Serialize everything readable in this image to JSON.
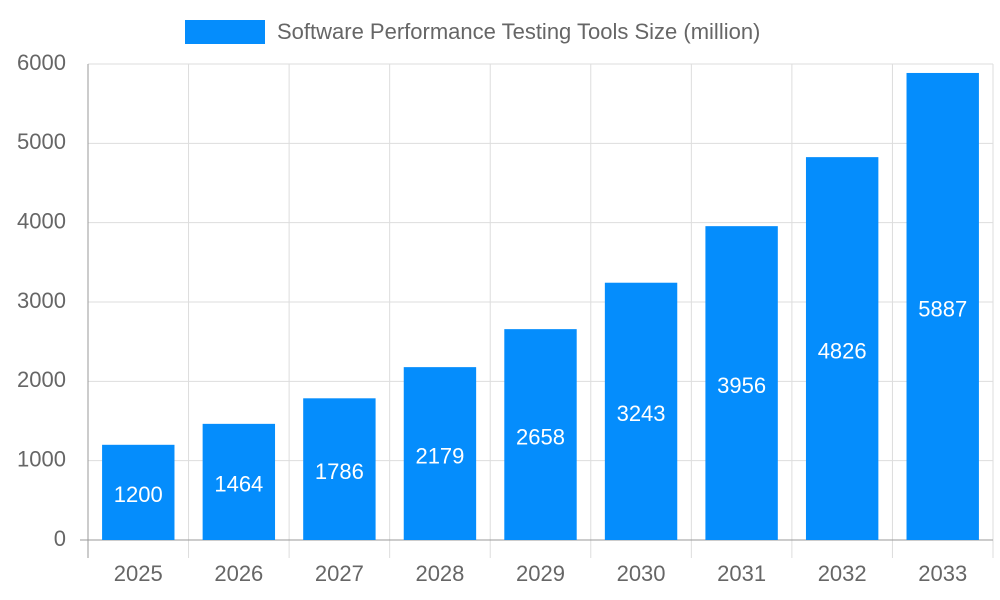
{
  "chart_data": {
    "type": "bar",
    "categories": [
      "2025",
      "2026",
      "2027",
      "2028",
      "2029",
      "2030",
      "2031",
      "2032",
      "2033"
    ],
    "series": [
      {
        "name": "Software Performance Testing Tools Size (million)",
        "color": "#058dfc",
        "values": [
          1200,
          1464,
          1786,
          2179,
          2658,
          3243,
          3956,
          4826,
          5887
        ]
      }
    ],
    "ylim": [
      0,
      6000
    ],
    "yticks": [
      0,
      1000,
      2000,
      3000,
      4000,
      5000,
      6000
    ],
    "grid": true
  }
}
